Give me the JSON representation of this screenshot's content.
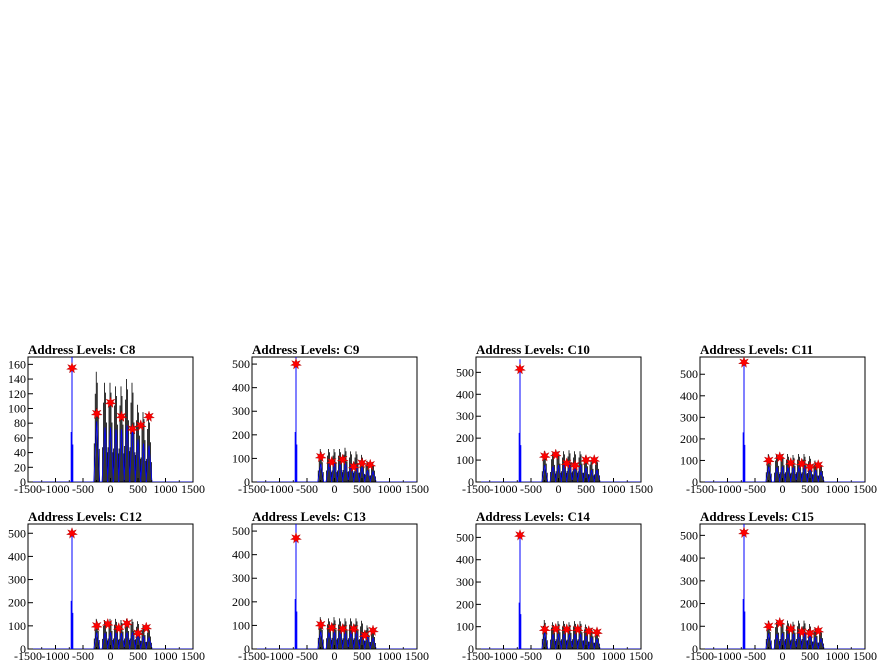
{
  "chart_data": [
    {
      "type": "histogram",
      "title": "Address Levels: C8",
      "xlim": [
        -1500,
        1500
      ],
      "ylim": [
        0,
        170
      ],
      "xticks": [
        -1500,
        -1000,
        -500,
        0,
        500,
        1000,
        1500
      ],
      "yticks": [
        0,
        20,
        40,
        60,
        80,
        100,
        120,
        140,
        160
      ],
      "blue_peak": {
        "x": -700,
        "y": 170
      },
      "black_peaks": [
        [
          -250,
          150
        ],
        [
          -100,
          135
        ],
        [
          0,
          135
        ],
        [
          100,
          130
        ],
        [
          200,
          130
        ],
        [
          300,
          140
        ],
        [
          400,
          135
        ],
        [
          500,
          105
        ],
        [
          600,
          95
        ],
        [
          700,
          90
        ]
      ],
      "markers": [
        [
          -700,
          155
        ],
        [
          -250,
          93
        ],
        [
          0,
          108
        ],
        [
          200,
          89
        ],
        [
          400,
          72
        ],
        [
          550,
          77
        ],
        [
          700,
          89
        ]
      ]
    },
    {
      "type": "histogram",
      "title": "Address Levels: C9",
      "xlim": [
        -1500,
        1500
      ],
      "ylim": [
        0,
        530
      ],
      "xticks": [
        -1500,
        -1000,
        -500,
        0,
        500,
        1000,
        1500
      ],
      "yticks": [
        0,
        100,
        200,
        300,
        400,
        500
      ],
      "blue_peak": {
        "x": -700,
        "y": 530
      },
      "black_peaks": [
        [
          -250,
          140
        ],
        [
          -100,
          140
        ],
        [
          0,
          140
        ],
        [
          100,
          140
        ],
        [
          200,
          145
        ],
        [
          300,
          130
        ],
        [
          400,
          130
        ],
        [
          500,
          115
        ],
        [
          600,
          90
        ],
        [
          700,
          80
        ]
      ],
      "markers": [
        [
          -700,
          500
        ],
        [
          -250,
          107
        ],
        [
          -50,
          85
        ],
        [
          150,
          95
        ],
        [
          350,
          65
        ],
        [
          500,
          80
        ],
        [
          650,
          73
        ]
      ]
    },
    {
      "type": "histogram",
      "title": "Address Levels: C10",
      "xlim": [
        -1500,
        1500
      ],
      "ylim": [
        0,
        570
      ],
      "xticks": [
        -1500,
        -1000,
        -500,
        0,
        500,
        1000,
        1500
      ],
      "yticks": [
        0,
        100,
        200,
        300,
        400,
        500
      ],
      "blue_peak": {
        "x": -700,
        "y": 560
      },
      "black_peaks": [
        [
          -250,
          140
        ],
        [
          -100,
          130
        ],
        [
          0,
          140
        ],
        [
          100,
          140
        ],
        [
          200,
          145
        ],
        [
          300,
          140
        ],
        [
          400,
          140
        ],
        [
          500,
          120
        ],
        [
          600,
          100
        ],
        [
          700,
          100
        ]
      ],
      "markers": [
        [
          -700,
          515
        ],
        [
          -250,
          118
        ],
        [
          -50,
          125
        ],
        [
          150,
          85
        ],
        [
          300,
          75
        ],
        [
          500,
          100
        ],
        [
          650,
          100
        ]
      ]
    },
    {
      "type": "histogram",
      "title": "Address Levels: C11",
      "xlim": [
        -1500,
        1500
      ],
      "ylim": [
        0,
        580
      ],
      "xticks": [
        -1500,
        -1000,
        -500,
        0,
        500,
        1000,
        1500
      ],
      "yticks": [
        0,
        100,
        200,
        300,
        400,
        500
      ],
      "blue_peak": {
        "x": -700,
        "y": 575
      },
      "black_peaks": [
        [
          -250,
          130
        ],
        [
          -100,
          125
        ],
        [
          0,
          130
        ],
        [
          100,
          130
        ],
        [
          200,
          125
        ],
        [
          300,
          130
        ],
        [
          400,
          130
        ],
        [
          500,
          120
        ],
        [
          600,
          100
        ],
        [
          700,
          85
        ]
      ],
      "markers": [
        [
          -700,
          555
        ],
        [
          -250,
          100
        ],
        [
          -50,
          115
        ],
        [
          150,
          88
        ],
        [
          350,
          85
        ],
        [
          500,
          70
        ],
        [
          650,
          78
        ]
      ]
    },
    {
      "type": "histogram",
      "title": "Address Levels: C12",
      "xlim": [
        -1500,
        1500
      ],
      "ylim": [
        0,
        540
      ],
      "xticks": [
        -1500,
        -1000,
        -500,
        0,
        500,
        1000,
        1500
      ],
      "yticks": [
        0,
        100,
        200,
        300,
        400,
        500
      ],
      "blue_peak": {
        "x": -700,
        "y": 520
      },
      "black_peaks": [
        [
          -250,
          130
        ],
        [
          -100,
          125
        ],
        [
          0,
          130
        ],
        [
          100,
          130
        ],
        [
          200,
          125
        ],
        [
          300,
          130
        ],
        [
          400,
          130
        ],
        [
          500,
          120
        ],
        [
          600,
          100
        ],
        [
          700,
          90
        ]
      ],
      "markers": [
        [
          -700,
          500
        ],
        [
          -250,
          100
        ],
        [
          -50,
          108
        ],
        [
          150,
          90
        ],
        [
          300,
          110
        ],
        [
          500,
          68
        ],
        [
          650,
          92
        ]
      ]
    },
    {
      "type": "histogram",
      "title": "Address Levels: C13",
      "xlim": [
        -1500,
        1500
      ],
      "ylim": [
        0,
        530
      ],
      "xticks": [
        -1500,
        -1000,
        -500,
        0,
        500,
        1000,
        1500
      ],
      "yticks": [
        0,
        100,
        200,
        300,
        400,
        500
      ],
      "blue_peak": {
        "x": -700,
        "y": 530
      },
      "black_peaks": [
        [
          -250,
          135
        ],
        [
          -100,
          130
        ],
        [
          0,
          135
        ],
        [
          100,
          130
        ],
        [
          200,
          130
        ],
        [
          300,
          130
        ],
        [
          400,
          130
        ],
        [
          500,
          120
        ],
        [
          600,
          100
        ],
        [
          700,
          85
        ]
      ],
      "markers": [
        [
          -700,
          470
        ],
        [
          -250,
          103
        ],
        [
          -50,
          90
        ],
        [
          150,
          85
        ],
        [
          350,
          85
        ],
        [
          550,
          58
        ],
        [
          700,
          78
        ]
      ]
    },
    {
      "type": "histogram",
      "title": "Address Levels: C14",
      "xlim": [
        -1500,
        1500
      ],
      "ylim": [
        0,
        560
      ],
      "xticks": [
        -1500,
        -1000,
        -500,
        0,
        500,
        1000,
        1500
      ],
      "yticks": [
        0,
        100,
        200,
        300,
        400,
        500
      ],
      "blue_peak": {
        "x": -700,
        "y": 520
      },
      "black_peaks": [
        [
          -250,
          130
        ],
        [
          -100,
          120
        ],
        [
          0,
          125
        ],
        [
          100,
          125
        ],
        [
          200,
          120
        ],
        [
          300,
          125
        ],
        [
          400,
          125
        ],
        [
          500,
          110
        ],
        [
          600,
          95
        ],
        [
          700,
          80
        ]
      ],
      "markers": [
        [
          -700,
          510
        ],
        [
          -250,
          88
        ],
        [
          -50,
          90
        ],
        [
          150,
          88
        ],
        [
          350,
          88
        ],
        [
          550,
          80
        ],
        [
          700,
          75
        ]
      ]
    },
    {
      "type": "histogram",
      "title": "Address Levels: C15",
      "xlim": [
        -1500,
        1500
      ],
      "ylim": [
        0,
        550
      ],
      "xticks": [
        -1500,
        -1000,
        -500,
        0,
        500,
        1000,
        1500
      ],
      "yticks": [
        0,
        100,
        200,
        300,
        400,
        500
      ],
      "blue_peak": {
        "x": -700,
        "y": 550
      },
      "black_peaks": [
        [
          -250,
          125
        ],
        [
          -100,
          120
        ],
        [
          0,
          125
        ],
        [
          100,
          125
        ],
        [
          200,
          120
        ],
        [
          300,
          125
        ],
        [
          400,
          125
        ],
        [
          500,
          110
        ],
        [
          600,
          95
        ],
        [
          700,
          80
        ]
      ],
      "markers": [
        [
          -700,
          512
        ],
        [
          -250,
          100
        ],
        [
          -50,
          115
        ],
        [
          150,
          88
        ],
        [
          350,
          75
        ],
        [
          500,
          70
        ],
        [
          650,
          80
        ]
      ]
    }
  ],
  "colors": {
    "blue": "#0000ff",
    "black": "#000000",
    "marker": "#ff0000"
  }
}
